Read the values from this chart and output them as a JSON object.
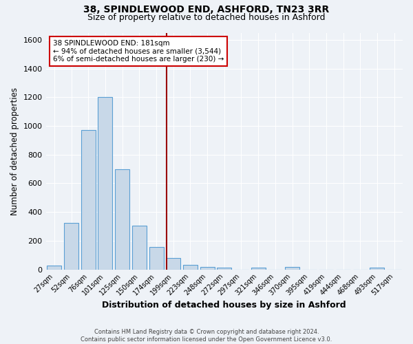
{
  "title": "38, SPINDLEWOOD END, ASHFORD, TN23 3RR",
  "subtitle": "Size of property relative to detached houses in Ashford",
  "xlabel": "Distribution of detached houses by size in Ashford",
  "ylabel": "Number of detached properties",
  "footer_line1": "Contains HM Land Registry data © Crown copyright and database right 2024.",
  "footer_line2": "Contains public sector information licensed under the Open Government Licence v3.0.",
  "bar_labels": [
    "27sqm",
    "52sqm",
    "76sqm",
    "101sqm",
    "125sqm",
    "150sqm",
    "174sqm",
    "199sqm",
    "223sqm",
    "248sqm",
    "272sqm",
    "297sqm",
    "321sqm",
    "346sqm",
    "370sqm",
    "395sqm",
    "419sqm",
    "444sqm",
    "468sqm",
    "493sqm",
    "517sqm"
  ],
  "bar_values": [
    25,
    325,
    970,
    1200,
    700,
    305,
    155,
    80,
    30,
    15,
    10,
    0,
    10,
    0,
    15,
    0,
    0,
    0,
    0,
    10,
    0
  ],
  "bar_color": "#c8d8e8",
  "bar_edge_color": "#5a9fd4",
  "annotation_text": "38 SPINDLEWOOD END: 181sqm\n← 94% of detached houses are smaller (3,544)\n6% of semi-detached houses are larger (230) →",
  "annotation_box_edge_color": "#cc0000",
  "vline_x": 6.62,
  "vline_color": "#990000",
  "ylim": [
    0,
    1650
  ],
  "yticks": [
    0,
    200,
    400,
    600,
    800,
    1000,
    1200,
    1400,
    1600
  ],
  "background_color": "#eef2f7",
  "plot_bg_color": "#eef2f7",
  "title_fontsize": 10,
  "subtitle_fontsize": 9,
  "xlabel_fontsize": 9,
  "ylabel_fontsize": 8.5
}
